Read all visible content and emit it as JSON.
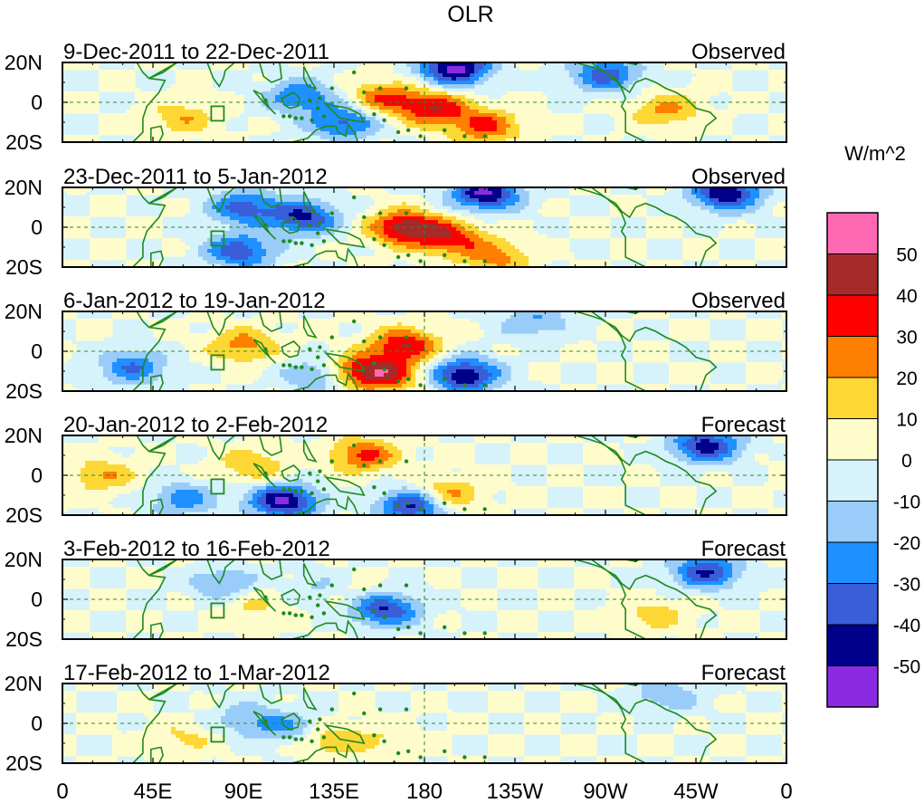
{
  "chart_data": {
    "type": "heatmap",
    "title": "OLR",
    "units": "W/m^2",
    "x_tick_labels": [
      "0",
      "45E",
      "90E",
      "135E",
      "180",
      "135W",
      "90W",
      "45W",
      "0"
    ],
    "x_ticks_deg_east": [
      0,
      45,
      90,
      135,
      180,
      225,
      270,
      315,
      360
    ],
    "y_tick_labels": [
      "20N",
      "0",
      "20S"
    ],
    "ylim_deg": [
      -20,
      20
    ],
    "colorbar": {
      "levels": [
        -50,
        -40,
        -30,
        -20,
        -10,
        0,
        10,
        20,
        30,
        40,
        50
      ],
      "labels": [
        "50",
        "40",
        "30",
        "20",
        "10",
        "0",
        "-10",
        "-20",
        "-30",
        "-40",
        "-50"
      ],
      "colors": [
        "#8a2be2",
        "#00008b",
        "#3a5ed8",
        "#1e90ff",
        "#99ccf8",
        "#d6f2fb",
        "#fffccc",
        "#fdd835",
        "#ff7f00",
        "#ff0000",
        "#a52a2a",
        "#ff69b4"
      ]
    },
    "panels": [
      {
        "period": "9-Dec-2011 to 22-Dec-2011",
        "kind": "Observed",
        "anomalies": [
          {
            "lon": 195,
            "lat": 17,
            "value": -55
          },
          {
            "lon": 118,
            "lat": 3,
            "value": -30
          },
          {
            "lon": 140,
            "lat": -10,
            "value": -35
          },
          {
            "lon": 185,
            "lat": -3,
            "value": 38
          },
          {
            "lon": 160,
            "lat": 2,
            "value": 30
          },
          {
            "lon": 210,
            "lat": -12,
            "value": 32
          },
          {
            "lon": 300,
            "lat": -4,
            "value": 22
          },
          {
            "lon": 60,
            "lat": -8,
            "value": 18
          },
          {
            "lon": 270,
            "lat": 14,
            "value": -35
          }
        ]
      },
      {
        "period": "23-Dec-2011 to 5-Jan-2012",
        "kind": "Observed",
        "anomalies": [
          {
            "lon": 210,
            "lat": 17,
            "value": -52
          },
          {
            "lon": 330,
            "lat": 17,
            "value": -50
          },
          {
            "lon": 120,
            "lat": 5,
            "value": -42
          },
          {
            "lon": 170,
            "lat": 0,
            "value": 45
          },
          {
            "lon": 192,
            "lat": -5,
            "value": 35
          },
          {
            "lon": 90,
            "lat": 10,
            "value": -35
          },
          {
            "lon": 88,
            "lat": -12,
            "value": -38
          },
          {
            "lon": 215,
            "lat": -15,
            "value": 25
          }
        ]
      },
      {
        "period": "6-Jan-2012 to 19-Jan-2012",
        "kind": "Observed",
        "anomalies": [
          {
            "lon": 170,
            "lat": 3,
            "value": 40
          },
          {
            "lon": 145,
            "lat": -10,
            "value": 35
          },
          {
            "lon": 162,
            "lat": -12,
            "value": 32
          },
          {
            "lon": 90,
            "lat": 3,
            "value": 25
          },
          {
            "lon": 200,
            "lat": -12,
            "value": -50
          },
          {
            "lon": 35,
            "lat": -8,
            "value": -30
          },
          {
            "lon": 235,
            "lat": 15,
            "value": -20
          },
          {
            "lon": 128,
            "lat": -12,
            "value": -28
          }
        ]
      },
      {
        "period": "20-Jan-2012 to 2-Feb-2012",
        "kind": "Forecast",
        "anomalies": [
          {
            "lon": 150,
            "lat": 10,
            "value": 32
          },
          {
            "lon": 190,
            "lat": -10,
            "value": 28
          },
          {
            "lon": 110,
            "lat": -13,
            "value": -52
          },
          {
            "lon": 175,
            "lat": -15,
            "value": -48
          },
          {
            "lon": 320,
            "lat": 15,
            "value": -45
          },
          {
            "lon": 20,
            "lat": 0,
            "value": 20
          },
          {
            "lon": 95,
            "lat": 5,
            "value": 20
          },
          {
            "lon": 60,
            "lat": -12,
            "value": -25
          }
        ]
      },
      {
        "period": "3-Feb-2012 to 16-Feb-2012",
        "kind": "Forecast",
        "anomalies": [
          {
            "lon": 160,
            "lat": -5,
            "value": -42
          },
          {
            "lon": 320,
            "lat": 14,
            "value": -40
          },
          {
            "lon": 80,
            "lat": 8,
            "value": -20
          },
          {
            "lon": 130,
            "lat": 5,
            "value": -18
          },
          {
            "lon": 140,
            "lat": 3,
            "value": 15
          },
          {
            "lon": 295,
            "lat": -8,
            "value": 15
          },
          {
            "lon": 95,
            "lat": -3,
            "value": 12
          }
        ]
      },
      {
        "period": "17-Feb-2012 to 1-Mar-2012",
        "kind": "Forecast",
        "anomalies": [
          {
            "lon": 130,
            "lat": -8,
            "value": 22
          },
          {
            "lon": 115,
            "lat": -3,
            "value": -22
          },
          {
            "lon": 92,
            "lat": 2,
            "value": -18
          },
          {
            "lon": 300,
            "lat": 14,
            "value": -18
          },
          {
            "lon": 60,
            "lat": -8,
            "value": 12
          },
          {
            "lon": 160,
            "lat": -8,
            "value": 10
          }
        ]
      }
    ]
  }
}
